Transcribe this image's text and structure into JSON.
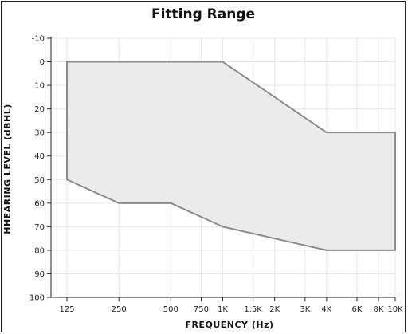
{
  "chart_data": {
    "type": "area",
    "title": "Fitting Range",
    "xlabel": "FREQUENCY (Hz)",
    "ylabel": "HHEARING LEVEL (dBHL)",
    "x_scale": "log",
    "x_ticks": [
      {
        "value": 125,
        "label": "125"
      },
      {
        "value": 250,
        "label": "250"
      },
      {
        "value": 500,
        "label": "500"
      },
      {
        "value": 750,
        "label": "750"
      },
      {
        "value": 1000,
        "label": "1K"
      },
      {
        "value": 1500,
        "label": "1.5K"
      },
      {
        "value": 2000,
        "label": "2K"
      },
      {
        "value": 3000,
        "label": "3K"
      },
      {
        "value": 4000,
        "label": "4K"
      },
      {
        "value": 6000,
        "label": "6K"
      },
      {
        "value": 8000,
        "label": "8K"
      },
      {
        "value": 10000,
        "label": "10K"
      }
    ],
    "ylim": [
      -10,
      100
    ],
    "y_inverted": true,
    "y_ticks": [
      -10,
      0,
      10,
      20,
      30,
      40,
      50,
      60,
      70,
      80,
      90,
      100
    ],
    "grid": true,
    "series": [
      {
        "upper": [
          {
            "x": 125,
            "y": 0
          },
          {
            "x": 1000,
            "y": 0
          },
          {
            "x": 4000,
            "y": 30
          },
          {
            "x": 10000,
            "y": 30
          }
        ],
        "lower": [
          {
            "x": 125,
            "y": 50
          },
          {
            "x": 250,
            "y": 60
          },
          {
            "x": 500,
            "y": 60
          },
          {
            "x": 1000,
            "y": 70
          },
          {
            "x": 4000,
            "y": 80
          },
          {
            "x": 10000,
            "y": 80
          }
        ]
      }
    ],
    "colors": {
      "fill": "#ebebeb",
      "stroke": "#8c8c8c",
      "grid": "#e6e6e6",
      "axis": "#222222"
    }
  }
}
